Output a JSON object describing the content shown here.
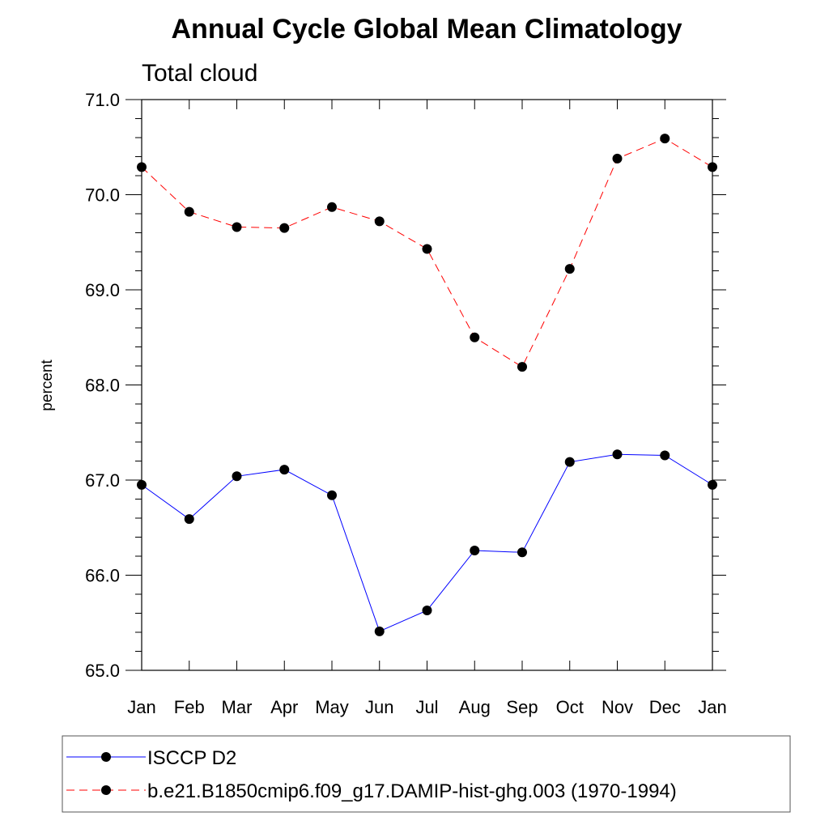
{
  "chart_data": {
    "type": "line",
    "title": "Annual Cycle Global Mean Climatology",
    "subtitle": "Total cloud",
    "xlabel": "",
    "ylabel": "percent",
    "categories": [
      "Jan",
      "Feb",
      "Mar",
      "Apr",
      "May",
      "Jun",
      "Jul",
      "Aug",
      "Sep",
      "Oct",
      "Nov",
      "Dec",
      "Jan"
    ],
    "ylim": [
      65.0,
      71.0
    ],
    "yticks": [
      "65.0",
      "66.0",
      "67.0",
      "68.0",
      "69.0",
      "70.0",
      "71.0"
    ],
    "grid": false,
    "legend_position": "bottom",
    "series": [
      {
        "name": "ISCCP D2",
        "color": "#0000ff",
        "dash": "solid",
        "values": [
          66.95,
          66.59,
          67.04,
          67.11,
          66.84,
          65.41,
          65.63,
          66.26,
          66.24,
          67.19,
          67.27,
          67.26,
          66.95
        ]
      },
      {
        "name": "b.e21.B1850cmip6.f09_g17.DAMIP-hist-ghg.003 (1970-1994)",
        "color": "#ff0000",
        "dash": "dashed",
        "values": [
          70.29,
          69.82,
          69.66,
          69.65,
          69.87,
          69.72,
          69.43,
          68.5,
          68.19,
          69.22,
          70.38,
          70.59,
          70.29
        ]
      }
    ]
  }
}
